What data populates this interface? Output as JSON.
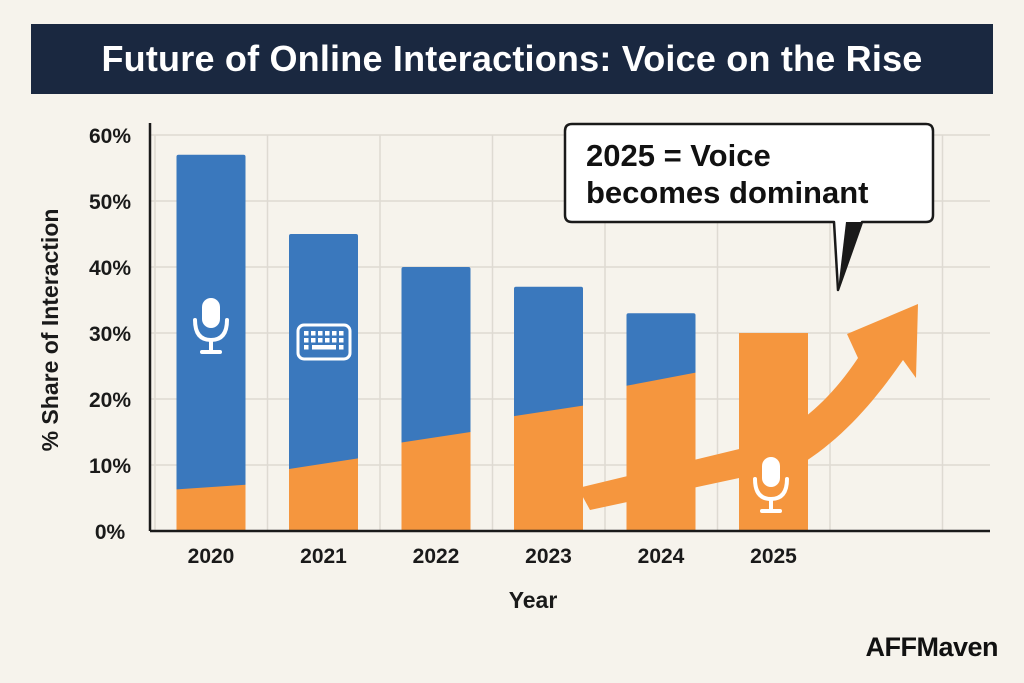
{
  "chart_data": {
    "type": "bar",
    "title": "Future of Online Interactions: Voice on the Rise",
    "xlabel": "Year",
    "ylabel": "% Share of Interaction",
    "categories": [
      "2020",
      "2021",
      "2022",
      "2023",
      "2024",
      "2025"
    ],
    "y_ticks": [
      "0%",
      "10%",
      "20%",
      "30%",
      "40%",
      "50%",
      "60%"
    ],
    "ylim": [
      0,
      60
    ],
    "grid": true,
    "series": [
      {
        "values": [
          57,
          45,
          40,
          37,
          33,
          0
        ],
        "color": "#3a78bd"
      },
      {
        "values": [
          7,
          11,
          15,
          19,
          24,
          30
        ],
        "color": "#f5963e"
      }
    ],
    "annotation": {
      "lines": [
        "2025 = Voice",
        "becomes dominant"
      ]
    },
    "trend": "rising"
  },
  "icons": [
    "microphone-icon",
    "keyboard-icon",
    "microphone-icon"
  ],
  "watermark": "AFFMaven"
}
